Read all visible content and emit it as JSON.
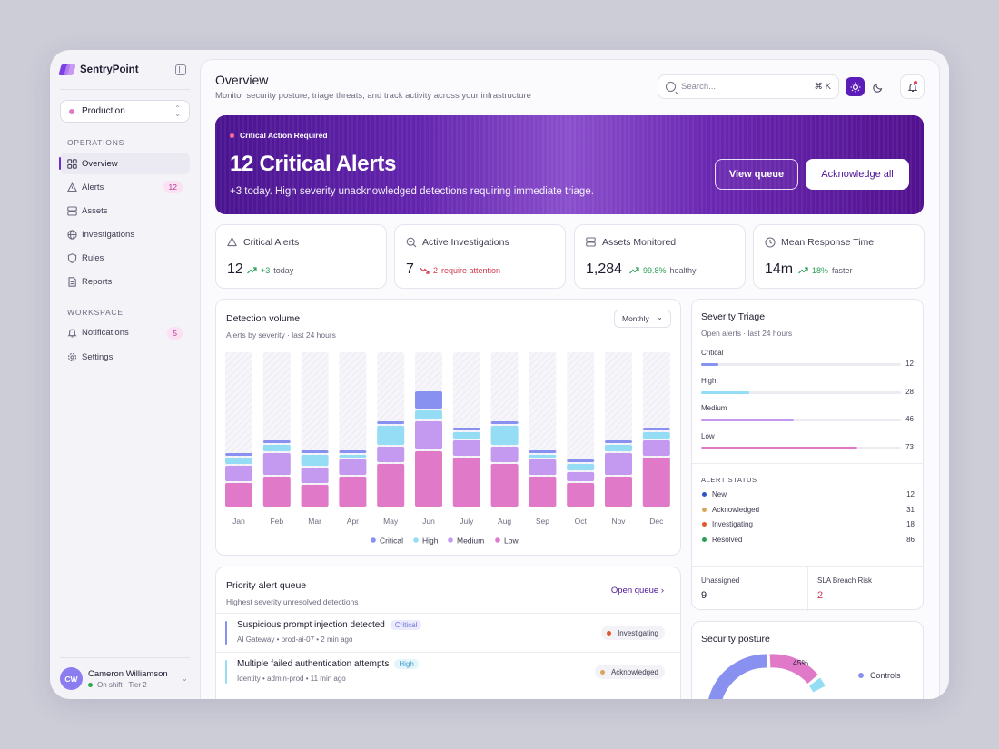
{
  "app": {
    "name": "SentryPoint"
  },
  "environment": {
    "selected": "Production"
  },
  "sidebar": {
    "operations_label": "OPERATIONS",
    "operations": [
      {
        "label": "Overview",
        "icon": "grid-icon",
        "badge": ""
      },
      {
        "label": "Alerts",
        "icon": "warning-triangle-icon",
        "badge": "12"
      },
      {
        "label": "Assets",
        "icon": "server-icon",
        "badge": ""
      },
      {
        "label": "Investigations",
        "icon": "globe-icon",
        "badge": ""
      },
      {
        "label": "Rules",
        "icon": "shield-icon",
        "badge": ""
      },
      {
        "label": "Reports",
        "icon": "document-icon",
        "badge": ""
      }
    ],
    "workspace_label": "WORKSPACE",
    "workspace": [
      {
        "label": "Notifications",
        "icon": "bell-icon",
        "badge": "5"
      },
      {
        "label": "Settings",
        "icon": "gear-icon",
        "badge": ""
      }
    ]
  },
  "user": {
    "initials": "CW",
    "name": "Cameron Williamson",
    "status": "On shift · Tier 2"
  },
  "header": {
    "title": "Overview",
    "subtitle": "Monitor security posture, triage threats, and track activity across your infrastructure",
    "search_placeholder": "Search...",
    "search_shortcut": "⌘ K"
  },
  "banner": {
    "tag": "Critical Action Required",
    "title": "12 Critical Alerts",
    "subtitle": "+3 today. High severity unacknowledged detections requiring immediate triage.",
    "view_queue": "View queue",
    "acknowledge_all": "Acknowledge all"
  },
  "stats": [
    {
      "label": "Critical Alerts",
      "icon": "warning-triangle-icon",
      "value": "12",
      "delta": "+3",
      "note": "today",
      "trend": "up"
    },
    {
      "label": "Active Investigations",
      "icon": "search-doc-icon",
      "value": "7",
      "delta": "2",
      "note": "require attention",
      "trend": "down"
    },
    {
      "label": "Assets Monitored",
      "icon": "server-icon",
      "value": "1,284",
      "delta": "99.8%",
      "note": "healthy",
      "trend": "up"
    },
    {
      "label": "Mean Response Time",
      "icon": "clock-icon",
      "value": "14m",
      "delta": "18%",
      "note": "faster",
      "trend": "up"
    }
  ],
  "detection": {
    "title": "Detection volume",
    "subtitle": "Alerts by severity · last 24 hours",
    "period": "Monthly"
  },
  "chart_data": {
    "type": "bar",
    "stacked": true,
    "categories": [
      "Jan",
      "Feb",
      "Mar",
      "Apr",
      "May",
      "Jun",
      "July",
      "Aug",
      "Sep",
      "Oct",
      "Nov",
      "Dec"
    ],
    "series": [
      {
        "name": "Low",
        "color": "#e07ac8",
        "values": [
          26,
          33,
          24,
          33,
          47,
          61,
          54,
          47,
          33,
          26,
          33,
          54
        ]
      },
      {
        "name": "Medium",
        "color": "#c39af0",
        "values": [
          19,
          26,
          19,
          19,
          19,
          33,
          19,
          19,
          19,
          12,
          26,
          19
        ]
      },
      {
        "name": "High",
        "color": "#94ddf5",
        "values": [
          9,
          9,
          14,
          5,
          23,
          12,
          9,
          23,
          5,
          9,
          9,
          9
        ]
      },
      {
        "name": "Critical",
        "color": "#8891f0",
        "values": [
          5,
          5,
          5,
          5,
          5,
          21,
          5,
          5,
          5,
          5,
          5,
          5
        ]
      }
    ],
    "legend_order": [
      "Critical",
      "High",
      "Medium",
      "Low"
    ],
    "ylim": [
      0,
      170
    ],
    "legend": "bottom",
    "grid": false
  },
  "queue": {
    "title": "Priority alert queue",
    "subtitle": "Highest severity unresolved detections",
    "open_link": "Open queue",
    "items": [
      {
        "title": "Suspicious prompt injection detected",
        "severity": "Critical",
        "meta": "AI Gateway • prod-ai-07 • 2 min ago",
        "status": "Investigating",
        "bar_color": "#8891f0",
        "tag_bg": "#ecebfd",
        "tag_color": "#7076d9",
        "status_color": "#e0582e"
      },
      {
        "title": "Multiple failed authentication attempts",
        "severity": "High",
        "meta": "Identity • admin-prod • 11 min ago",
        "status": "Acknowledged",
        "bar_color": "#94ddf5",
        "tag_bg": "#e4f5fc",
        "tag_color": "#3f9fc8",
        "status_color": "#d8a55a"
      }
    ]
  },
  "triage": {
    "title": "Severity Triage",
    "subtitle": "Open alerts · last 24 hours",
    "items": [
      {
        "label": "Critical",
        "value": "12",
        "fraction": 0.085,
        "color": "#8891f0"
      },
      {
        "label": "High",
        "value": "28",
        "fraction": 0.24,
        "color": "#94ddf5"
      },
      {
        "label": "Medium",
        "value": "46",
        "fraction": 0.465,
        "color": "#c39af0"
      },
      {
        "label": "Low",
        "value": "73",
        "fraction": 0.78,
        "color": "#e07ac8"
      }
    ],
    "status_heading": "ALERT STATUS",
    "status": [
      {
        "label": "New",
        "value": "12",
        "color": "#2b55c9"
      },
      {
        "label": "Acknowledged",
        "value": "31",
        "color": "#d8a55a"
      },
      {
        "label": "Investigating",
        "value": "18",
        "color": "#e0582e"
      },
      {
        "label": "Resolved",
        "value": "86",
        "color": "#2a9e53"
      }
    ],
    "unassigned_label": "Unassigned",
    "unassigned_value": "9",
    "sla_label": "SLA Breach Risk",
    "sla_value": "2"
  },
  "posture": {
    "title": "Security posture",
    "percent": "45%",
    "legend": "Controls"
  }
}
